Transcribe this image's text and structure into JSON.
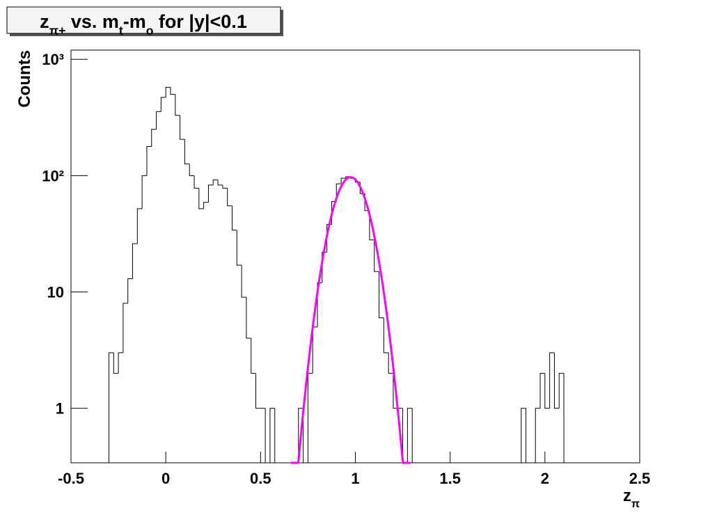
{
  "chart_data": {
    "type": "histogram",
    "title": [
      {
        "text": "z"
      },
      {
        "text": "π+",
        "sub": true
      },
      {
        "text": " vs. m"
      },
      {
        "text": "t",
        "sub": true
      },
      {
        "text": "-m"
      },
      {
        "text": "o",
        "sub": true
      },
      {
        "text": " for |y|<0.1"
      }
    ],
    "xlabel": [
      {
        "text": "z"
      },
      {
        "text": "π",
        "sub": true
      }
    ],
    "ylabel": "Counts",
    "bins": [
      -0.5,
      -0.475,
      -0.45,
      -0.425,
      -0.4,
      -0.375,
      -0.35,
      -0.325,
      -0.3,
      -0.275,
      -0.25,
      -0.225,
      -0.2,
      -0.175,
      -0.15,
      -0.125,
      -0.1,
      -0.075,
      -0.05,
      -0.025,
      0,
      0.025,
      0.05,
      0.075,
      0.1,
      0.125,
      0.15,
      0.175,
      0.2,
      0.225,
      0.25,
      0.275,
      0.3,
      0.325,
      0.35,
      0.375,
      0.4,
      0.425,
      0.45,
      0.475,
      0.5,
      0.525,
      0.55,
      0.575,
      0.6,
      0.625,
      0.65,
      0.675,
      0.7,
      0.725,
      0.75,
      0.775,
      0.8,
      0.825,
      0.85,
      0.875,
      0.9,
      0.925,
      0.95,
      0.975,
      1,
      1.025,
      1.05,
      1.075,
      1.1,
      1.125,
      1.15,
      1.175,
      1.2,
      1.225,
      1.25,
      1.275,
      1.3,
      1.325,
      1.35,
      1.375,
      1.4,
      1.425,
      1.45,
      1.475,
      1.5,
      1.525,
      1.55,
      1.575,
      1.6,
      1.625,
      1.65,
      1.675,
      1.7,
      1.725,
      1.75,
      1.775,
      1.8,
      1.825,
      1.85,
      1.875,
      1.9,
      1.925,
      1.95,
      1.975,
      2,
      2.025,
      2.05,
      2.075,
      2.1,
      2.125,
      2.15,
      2.175,
      2.2,
      2.225,
      2.25,
      2.275,
      2.3,
      2.325,
      2.35,
      2.375,
      2.4,
      2.425,
      2.45,
      2.475,
      2.5
    ],
    "values": [
      0,
      0,
      0,
      0,
      0,
      0,
      0,
      0,
      3,
      2,
      3,
      8,
      13,
      26,
      52,
      100,
      178,
      250,
      355,
      470,
      575,
      500,
      330,
      205,
      126,
      100,
      78,
      52,
      59,
      83,
      92,
      83,
      78,
      55,
      34,
      17,
      9,
      4,
      2,
      1,
      1,
      0,
      1,
      0,
      0,
      0,
      0,
      0,
      1,
      0,
      2,
      5,
      12,
      22,
      38,
      60,
      85,
      95,
      98,
      95,
      88,
      70,
      50,
      28,
      15,
      6,
      3,
      2,
      1,
      1,
      0,
      1,
      0,
      0,
      0,
      0,
      0,
      0,
      0,
      0,
      0,
      0,
      0,
      0,
      0,
      0,
      0,
      0,
      0,
      0,
      0,
      0,
      0,
      0,
      0,
      1,
      0,
      0,
      1,
      2,
      1,
      3,
      1,
      2,
      0,
      0,
      0,
      0,
      0,
      0,
      0,
      0,
      0,
      0,
      0,
      0,
      0,
      0,
      0,
      0
    ],
    "color": "#000000",
    "fit": {
      "amplitude": 97,
      "mean": 0.975,
      "sigma": 0.082,
      "range": [
        0.66,
        1.29
      ],
      "color": "#ff00ff"
    },
    "xlim": [
      -0.5,
      2.5
    ],
    "xticks": [
      -0.5,
      0,
      0.5,
      1,
      1.5,
      2,
      2.5
    ],
    "ylim": [
      0.34,
      1200
    ],
    "yticks": [
      1,
      10,
      {
        "value": 100,
        "label": "10²"
      },
      {
        "value": 1000,
        "label": "10³"
      }
    ],
    "log_y": true
  }
}
